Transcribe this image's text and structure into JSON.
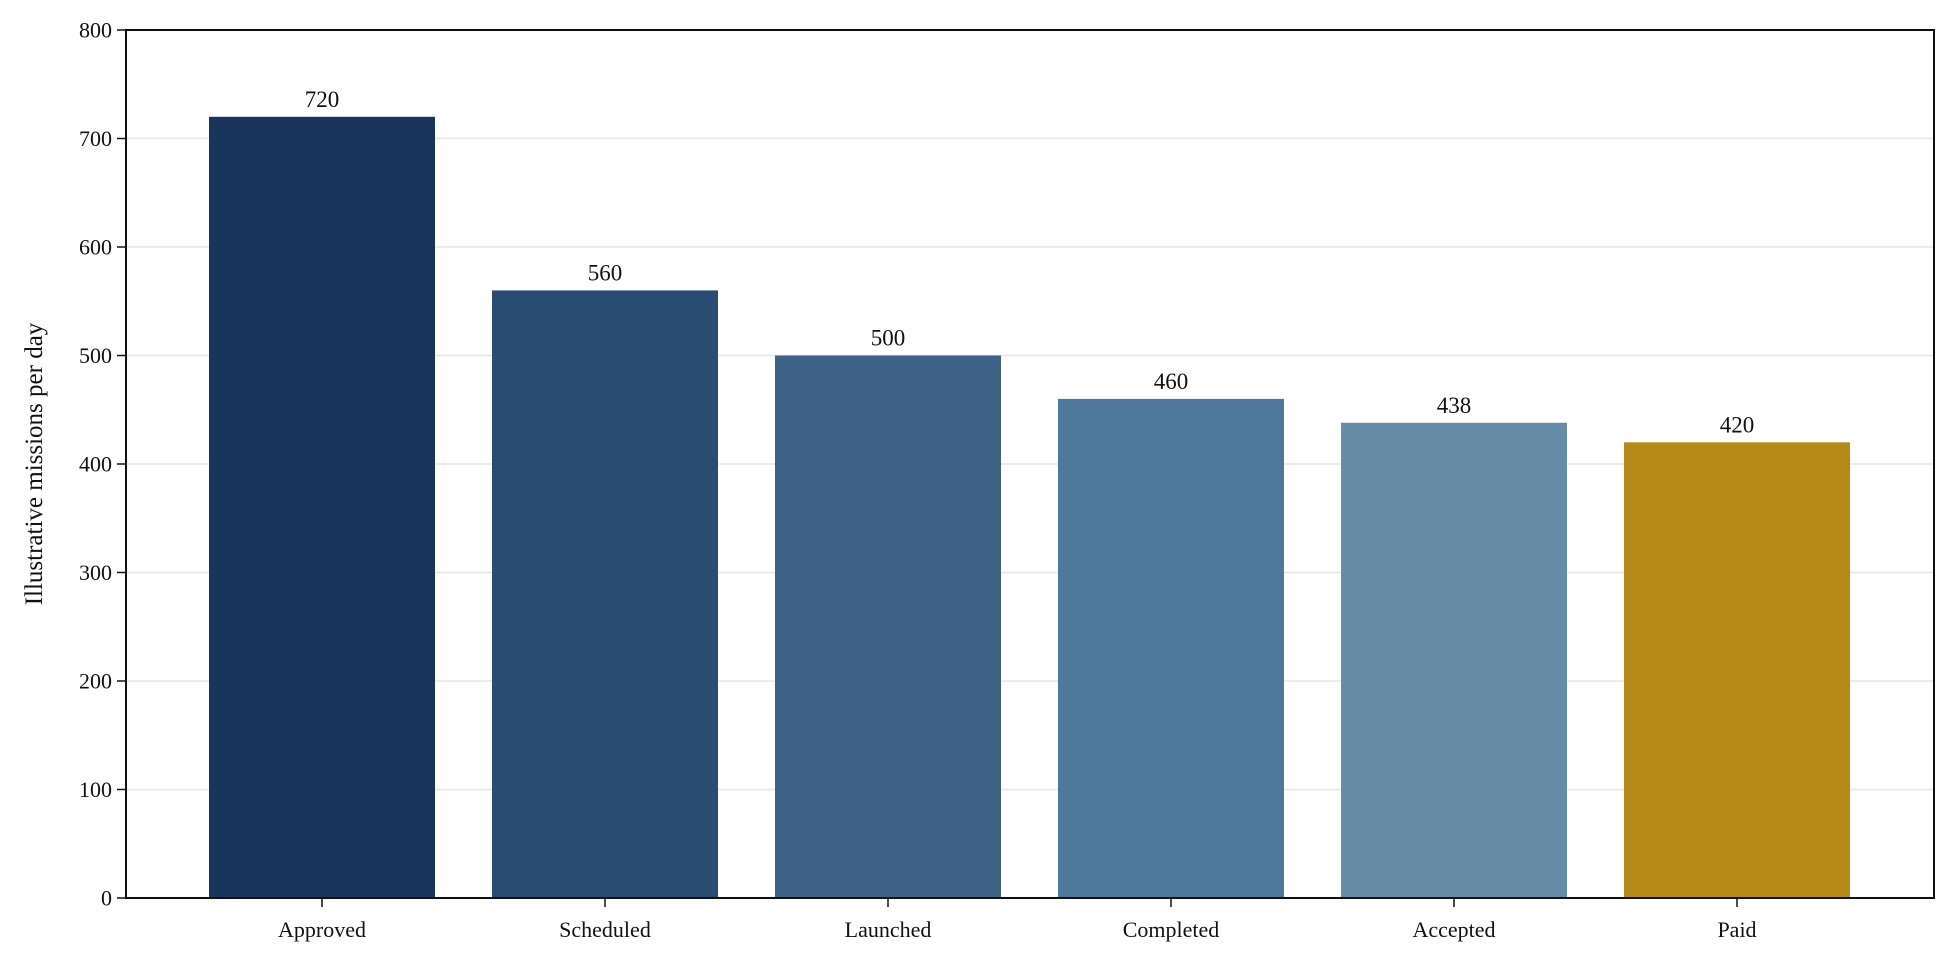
{
  "chart_data": {
    "type": "bar",
    "title": "",
    "xlabel": "",
    "ylabel": "Illustrative missions per day",
    "categories": [
      "Approved",
      "Scheduled",
      "Launched",
      "Completed",
      "Accepted",
      "Paid"
    ],
    "values": [
      720,
      560,
      500,
      460,
      438,
      420
    ],
    "data_labels": [
      "720",
      "560",
      "500",
      "460",
      "438",
      "420"
    ],
    "colors": [
      "#1a355b",
      "#294c73",
      "#3d6286",
      "#4e7899",
      "#668ca8",
      "#b68a19"
    ],
    "ylim": [
      0,
      800
    ],
    "yticks": [
      0,
      100,
      200,
      300,
      400,
      500,
      600,
      700,
      800
    ],
    "ytick_labels": [
      "0",
      "100",
      "200",
      "300",
      "400",
      "500",
      "600",
      "700",
      "800"
    ],
    "grid": "horizontal",
    "legend": "none"
  }
}
